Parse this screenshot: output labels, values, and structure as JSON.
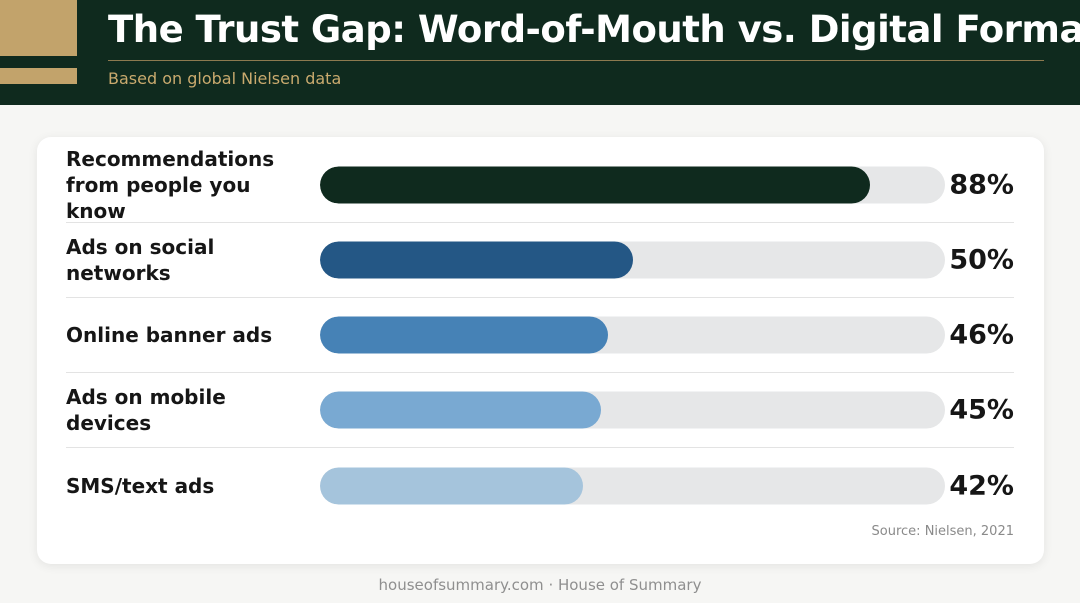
{
  "header": {
    "title": "The Trust Gap: Word-of-Mouth vs. Digital Formats",
    "subtitle": "Based on global Nielsen data"
  },
  "colors": {
    "header_bg": "#0f2a1e",
    "accent_gold": "#c2a36b",
    "track": "#e6e7e8"
  },
  "chart_data": {
    "type": "bar",
    "orientation": "horizontal",
    "categories": [
      "Recommendations\nfrom people you know",
      "Ads on social networks",
      "Online banner ads",
      "Ads on mobile devices",
      "SMS/text ads"
    ],
    "values": [
      88,
      50,
      46,
      45,
      42
    ],
    "value_labels": [
      "88%",
      "50%",
      "46%",
      "45%",
      "42%"
    ],
    "bar_colors": [
      "#0f2a1e",
      "#245785",
      "#4682b6",
      "#79a9d2",
      "#a5c4dc"
    ],
    "xlim": [
      0,
      100
    ],
    "source": "Source: Nielsen, 2021"
  },
  "footer": {
    "credit": "houseofsummary.com · House of Summary"
  }
}
